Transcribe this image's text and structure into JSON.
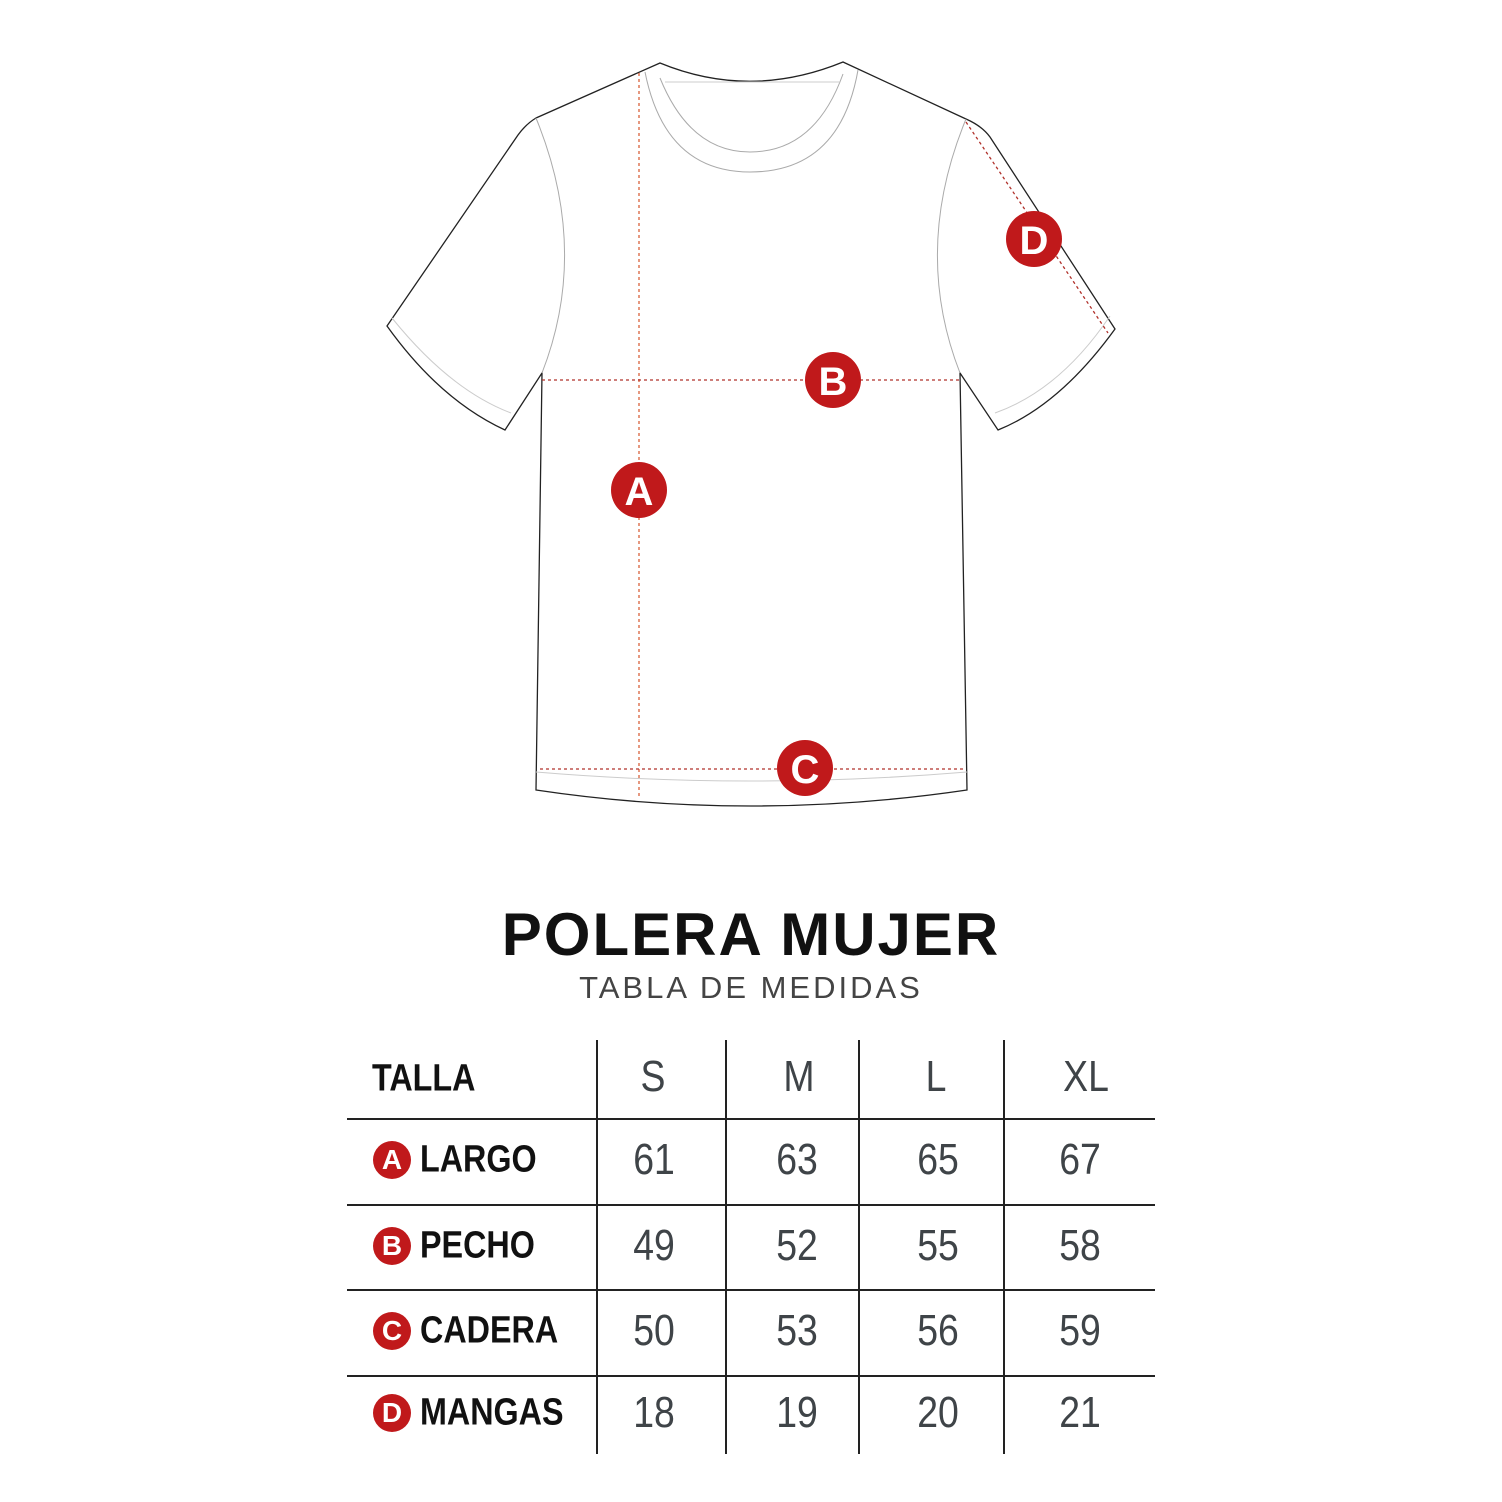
{
  "colors": {
    "accent": "#c0191b",
    "outline": "#222222",
    "dotted": "#d9603b",
    "value_text": "#3f4448"
  },
  "diagram": {
    "markers": [
      {
        "letter": "A",
        "measure": "largo"
      },
      {
        "letter": "B",
        "measure": "pecho"
      },
      {
        "letter": "C",
        "measure": "cadera"
      },
      {
        "letter": "D",
        "measure": "mangas"
      }
    ]
  },
  "title": "POLERA MUJER",
  "subtitle": "TABLA DE MEDIDAS",
  "table": {
    "header": {
      "label": "TALLA",
      "sizes": [
        "S",
        "M",
        "L",
        "XL"
      ]
    },
    "rows": [
      {
        "badge": "A",
        "label": "LARGO",
        "values": [
          "61",
          "63",
          "65",
          "67"
        ]
      },
      {
        "badge": "B",
        "label": "PECHO",
        "values": [
          "49",
          "52",
          "55",
          "58"
        ]
      },
      {
        "badge": "C",
        "label": "CADERA",
        "values": [
          "50",
          "53",
          "56",
          "59"
        ]
      },
      {
        "badge": "D",
        "label": "MANGAS",
        "values": [
          "18",
          "19",
          "20",
          "21"
        ]
      }
    ]
  }
}
